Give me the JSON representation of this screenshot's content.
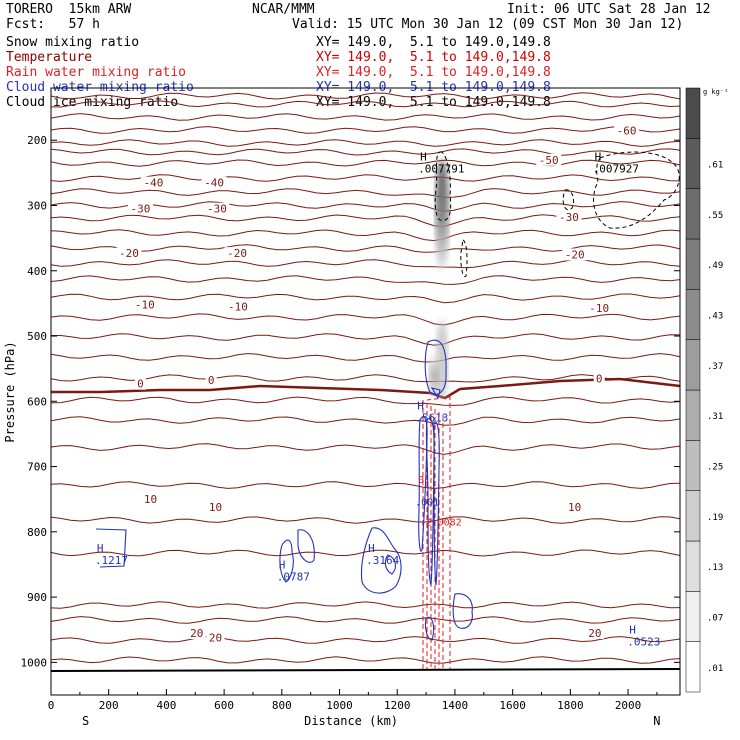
{
  "header": {
    "model": "TORERO  15km ARW",
    "org": "NCAR/MMM",
    "init": "Init: 06 UTC Sat 28 Jan 12",
    "fcst": "Fcst:   57 h",
    "valid": "Valid: 15 UTC Mon 30 Jan 12 (09 CST Mon 30 Jan 12)"
  },
  "legend": [
    {
      "name": "Snow mixing ratio",
      "color": "#000000",
      "xy": "XY= 149.0,  5.1 to 149.0,149.8"
    },
    {
      "name": "Temperature",
      "color": "#8b0000",
      "xy": "XY= 149.0,  5.1 to 149.0,149.8"
    },
    {
      "name": "Rain water mixing ratio",
      "color": "#dd2222",
      "xy": "XY= 149.0,  5.1 to 149.0,149.8"
    },
    {
      "name": "Cloud water mixing ratio",
      "color": "#2233bb",
      "xy": "XY= 149.0,  5.1 to 149.0,149.8"
    },
    {
      "name": "Cloud ice mixing ratio",
      "color": "#000000",
      "xy": "XY= 149.0,  5.1 to 149.0,149.8"
    }
  ],
  "chart_data": {
    "type": "cross-section contour",
    "xlabel": "Distance (km)",
    "ylabel": "Pressure (hPa)",
    "xlim": [
      0,
      2180
    ],
    "ylim": [
      1050,
      120
    ],
    "x_ticks": [
      0,
      200,
      400,
      600,
      800,
      1000,
      1200,
      1400,
      1600,
      1800,
      2000
    ],
    "y_ticks": [
      200,
      300,
      400,
      500,
      600,
      700,
      800,
      900,
      1000
    ],
    "end_labels": {
      "left": "S",
      "right": "N"
    },
    "colorbar": {
      "unit": "g kg⁻¹",
      "ticks": [
        0.01,
        0.07,
        0.13,
        0.19,
        0.25,
        0.31,
        0.37,
        0.43,
        0.49,
        0.55,
        0.61
      ],
      "tick_labels": [
        ".01",
        ".07",
        ".13",
        ".19",
        ".25",
        ".31",
        ".37",
        ".43",
        ".49",
        ".55",
        ".61"
      ]
    },
    "temperature_labels": [
      {
        "t": -60,
        "x": 1995,
        "p": 185
      },
      {
        "t": -50,
        "x": 1725,
        "p": 230
      },
      {
        "t": -40,
        "x": 355,
        "p": 265
      },
      {
        "t": -40,
        "x": 565,
        "p": 265
      },
      {
        "t": -30,
        "x": 310,
        "p": 305
      },
      {
        "t": -30,
        "x": 575,
        "p": 305
      },
      {
        "t": -30,
        "x": 1795,
        "p": 318
      },
      {
        "t": -20,
        "x": 270,
        "p": 373
      },
      {
        "t": -20,
        "x": 645,
        "p": 373
      },
      {
        "t": -20,
        "x": 1815,
        "p": 375
      },
      {
        "t": -10,
        "x": 325,
        "p": 452
      },
      {
        "t": -10,
        "x": 648,
        "p": 455
      },
      {
        "t": -10,
        "x": 1900,
        "p": 457
      },
      {
        "t": 0,
        "x": 310,
        "p": 573
      },
      {
        "t": 0,
        "x": 555,
        "p": 567
      },
      {
        "t": 0,
        "x": 1900,
        "p": 565
      },
      {
        "t": 10,
        "x": 345,
        "p": 750
      },
      {
        "t": 10,
        "x": 570,
        "p": 762
      },
      {
        "t": 10,
        "x": 1815,
        "p": 762
      },
      {
        "t": 20,
        "x": 505,
        "p": 955
      },
      {
        "t": 20,
        "x": 570,
        "p": 962
      },
      {
        "t": 20,
        "x": 1885,
        "p": 955
      }
    ],
    "maxima": [
      {
        "label": "H",
        "value": ".007791",
        "x": 1300,
        "p": 240,
        "color": "#000000"
      },
      {
        "label": "H",
        "value": ".007927",
        "x": 1905,
        "p": 240,
        "color": "#000000"
      },
      {
        "label": "H",
        "value": ".5613",
        "x": 1290,
        "p": 622,
        "color": "#2233bb"
      },
      {
        "label": "H",
        "value": ".1217",
        "x": 180,
        "p": 840,
        "color": "#2233bb"
      },
      {
        "label": "H",
        "value": ".0787",
        "x": 810,
        "p": 865,
        "color": "#2233bb"
      },
      {
        "label": "H",
        "value": ".3164",
        "x": 1120,
        "p": 840,
        "color": "#2233bb"
      },
      {
        "label": "H",
        "value": ".0523",
        "x": 2025,
        "p": 965,
        "color": "#2233bb"
      }
    ],
    "contour_labels": [
      {
        "text": ".001",
        "x": 1262,
        "p": 760,
        "color": "#2233bb"
      },
      {
        "text": "0.",
        "x": 1272,
        "p": 725,
        "color": "#dd2222"
      },
      {
        "text": ".2",
        "x": 1278,
        "p": 790,
        "color": "#dd2222"
      },
      {
        "text": "0082",
        "x": 1340,
        "p": 790,
        "color": "#dd2222"
      }
    ]
  }
}
